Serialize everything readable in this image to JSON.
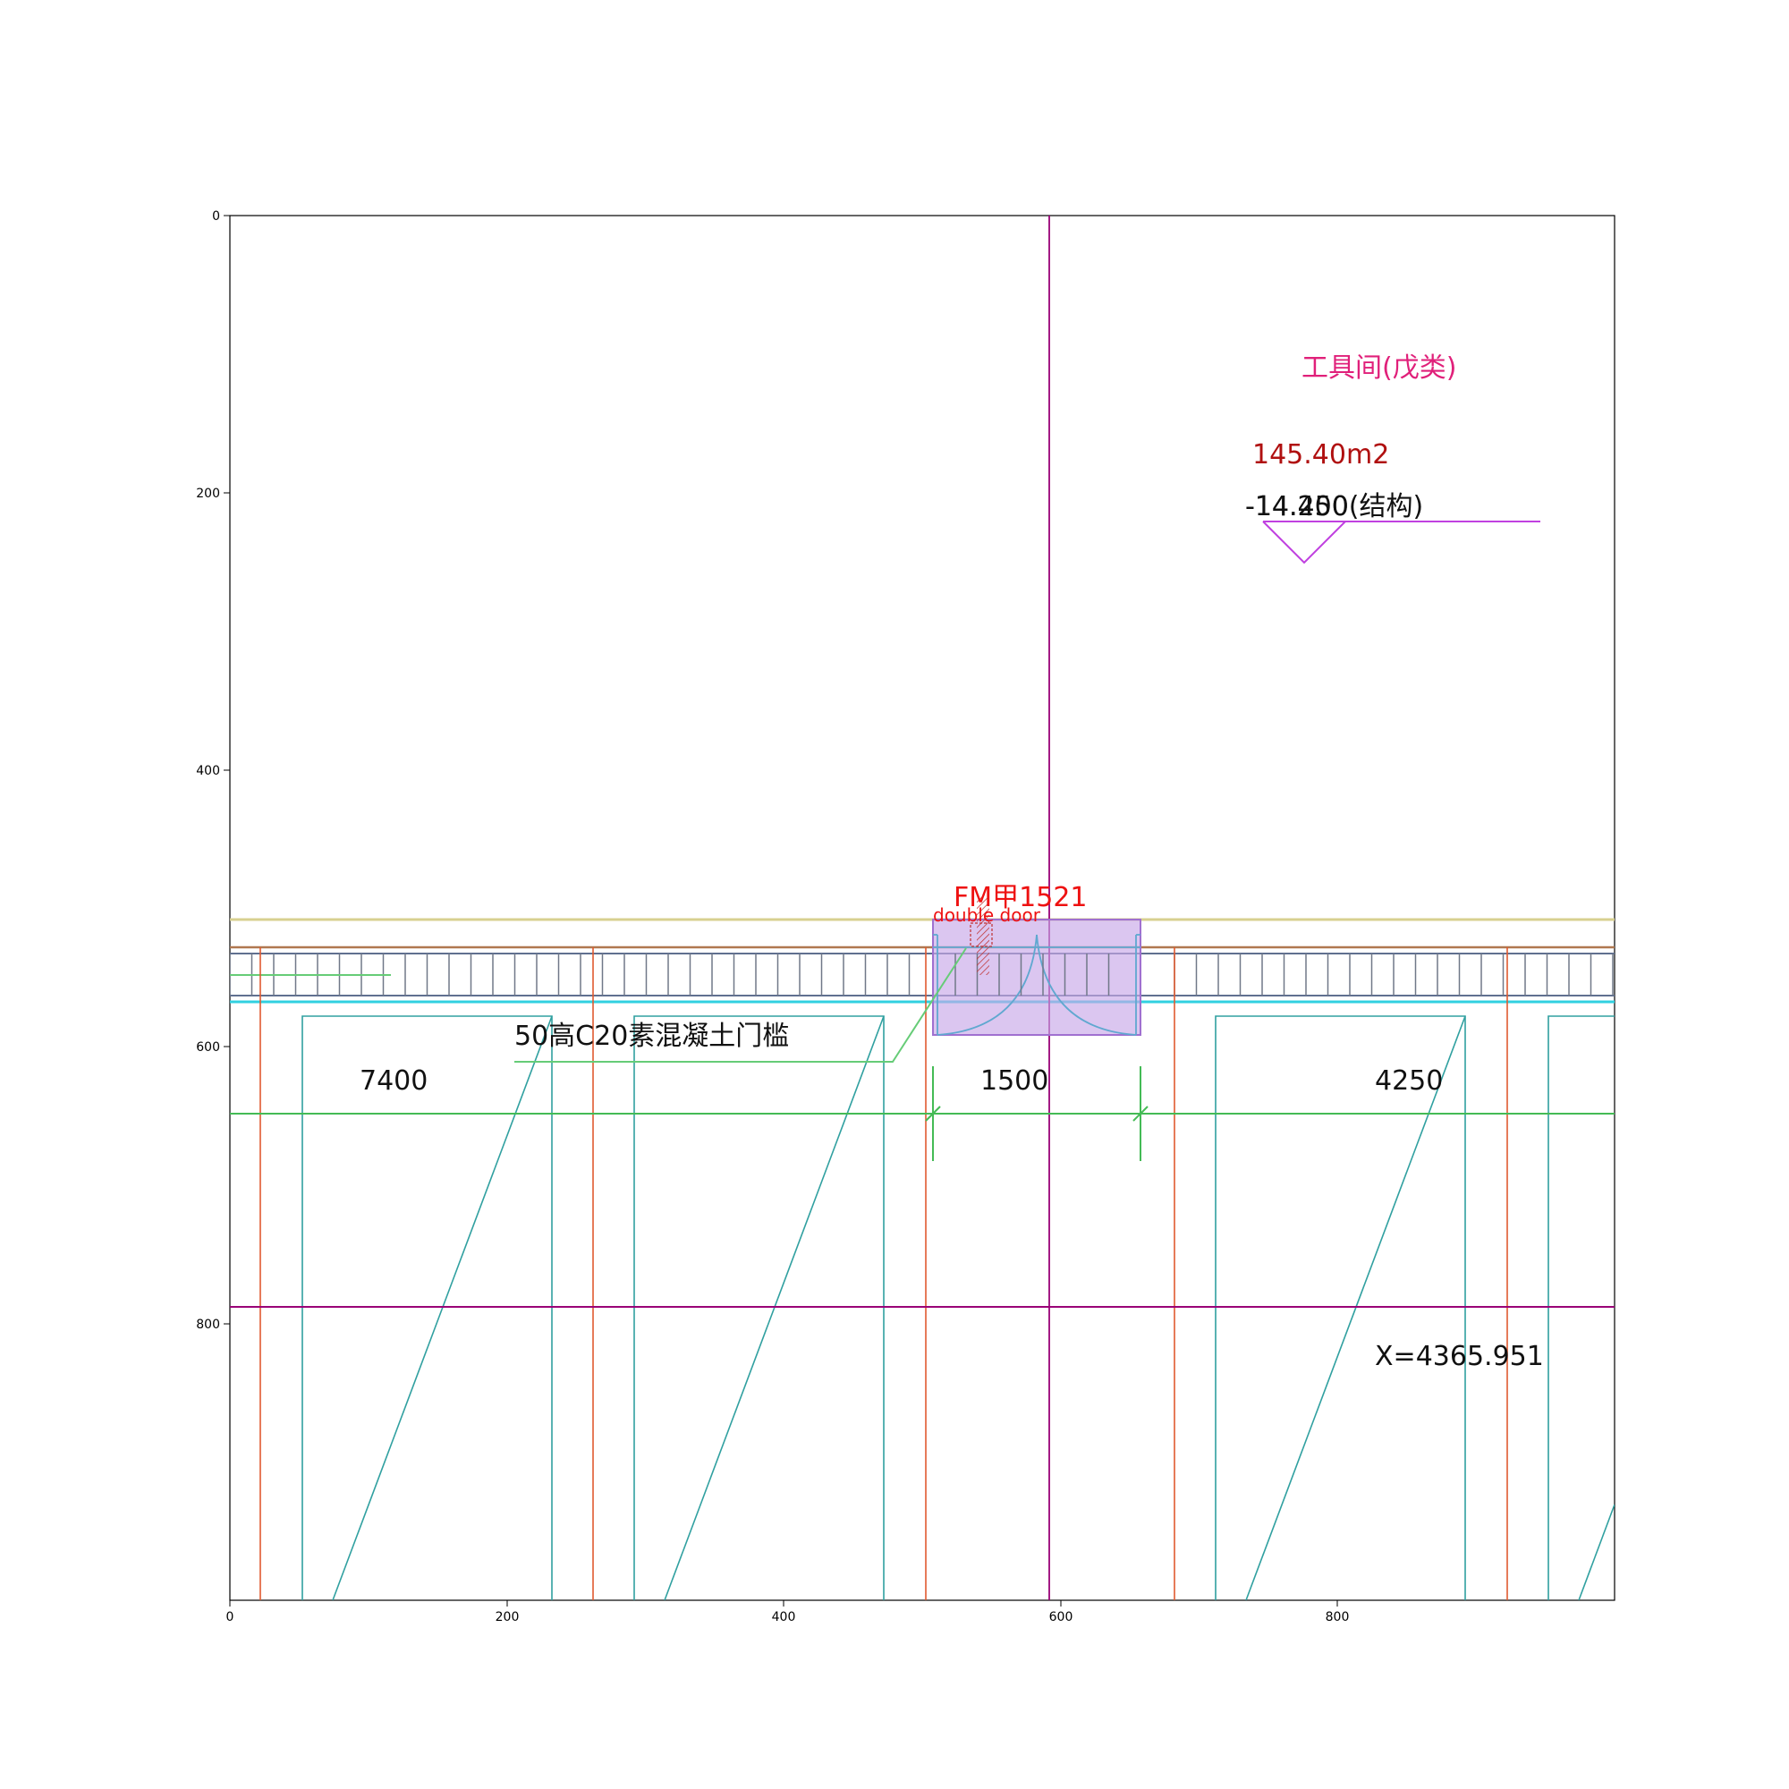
{
  "axes": {
    "x_ticks": [
      "0",
      "200",
      "400",
      "600",
      "800"
    ],
    "y_ticks": [
      "0",
      "200",
      "400",
      "600",
      "800"
    ]
  },
  "labels": {
    "room_name": "工具间(戊类)",
    "area": "145.40m2",
    "elevation": "-14.250(结构)",
    "elevation_overlap": "-14.400",
    "door_code": "FM甲1521",
    "door_type": "double door",
    "threshold_note": "50高C20素混凝土门槛",
    "dim_left": "7400",
    "dim_mid": "1500",
    "dim_right": "4250",
    "coordinate": "X=4365.951"
  },
  "colors": {
    "room_name": "#e0207a",
    "area": "#b01010",
    "door_code": "#ee1111",
    "door_highlight": "#c8a8e8",
    "elevation_marker": "#c040e0",
    "axis_grid": "#990077",
    "dimension": "#33bb44",
    "column": "#e04020",
    "wall": "#209090"
  }
}
